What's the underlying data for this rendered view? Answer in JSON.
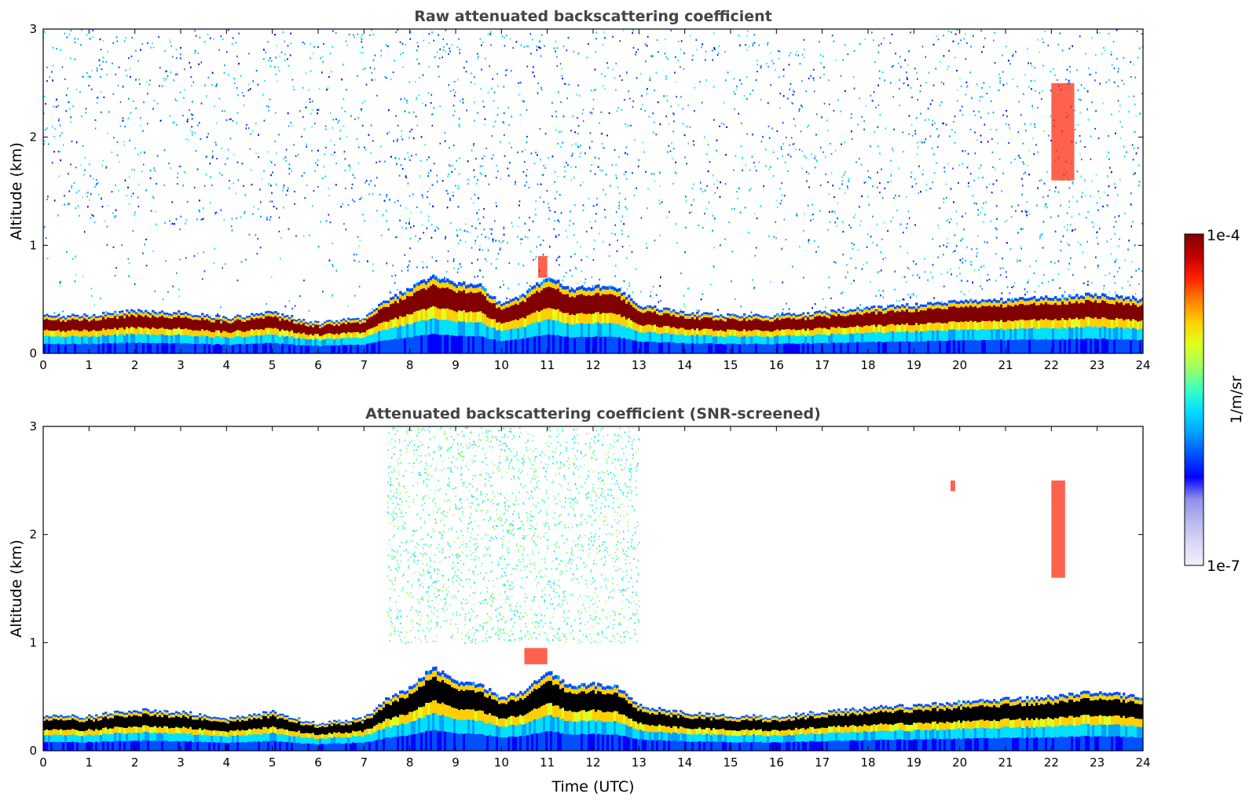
{
  "colors": {
    "background": "#ffffff",
    "axis": "#000000",
    "title": "#444444",
    "colormap": [
      "#f0f0fa",
      "#d8d8f5",
      "#b8b8f0",
      "#9090e8",
      "#0000ff",
      "#0050ff",
      "#00a0ff",
      "#00e0ff",
      "#40ffc0",
      "#a0ff60",
      "#e0ff20",
      "#ffd000",
      "#ff8000",
      "#ff2000",
      "#c00000",
      "#800000"
    ],
    "below_range": "#ffffff",
    "saturated": "#000000"
  },
  "chart_data": [
    {
      "type": "heatmap",
      "title": "Raw attenuated backscattering coefficient",
      "xlabel": "",
      "ylabel": "Altitude (km)",
      "xlim": [
        0,
        24
      ],
      "ylim": [
        0,
        3
      ],
      "xticks": [
        "0",
        "1",
        "2",
        "3",
        "4",
        "5",
        "6",
        "7",
        "8",
        "9",
        "10",
        "11",
        "12",
        "13",
        "14",
        "15",
        "16",
        "17",
        "18",
        "19",
        "20",
        "21",
        "22",
        "23",
        "24"
      ],
      "yticks": [
        "0",
        "1",
        "2",
        "3"
      ],
      "grid": false,
      "boundary_layer_top_km": [
        [
          0,
          0.35
        ],
        [
          1,
          0.35
        ],
        [
          2,
          0.4
        ],
        [
          3,
          0.38
        ],
        [
          4,
          0.33
        ],
        [
          5,
          0.38
        ],
        [
          6,
          0.28
        ],
        [
          7,
          0.33
        ],
        [
          7.5,
          0.5
        ],
        [
          8,
          0.6
        ],
        [
          8.5,
          0.72
        ],
        [
          9,
          0.65
        ],
        [
          9.5,
          0.65
        ],
        [
          10,
          0.45
        ],
        [
          10.5,
          0.55
        ],
        [
          11,
          0.72
        ],
        [
          11.5,
          0.6
        ],
        [
          12,
          0.62
        ],
        [
          12.5,
          0.62
        ],
        [
          13,
          0.45
        ],
        [
          14,
          0.38
        ],
        [
          15,
          0.35
        ],
        [
          16,
          0.35
        ],
        [
          17,
          0.38
        ],
        [
          18,
          0.42
        ],
        [
          19,
          0.45
        ],
        [
          20,
          0.48
        ],
        [
          21,
          0.5
        ],
        [
          22,
          0.52
        ],
        [
          23,
          0.55
        ],
        [
          24,
          0.5
        ]
      ],
      "features": [
        {
          "x": [
            10.8,
            11.0
          ],
          "y": [
            0.7,
            0.9
          ],
          "level": "high"
        },
        {
          "x": [
            22.0,
            22.5
          ],
          "y": [
            1.6,
            2.5
          ],
          "level": "high"
        }
      ]
    },
    {
      "type": "heatmap",
      "title": "Attenuated backscattering coefficient (SNR-screened)",
      "xlabel": "Time (UTC)",
      "ylabel": "Altitude (km)",
      "xlim": [
        0,
        24
      ],
      "ylim": [
        0,
        3
      ],
      "xticks": [
        "0",
        "1",
        "2",
        "3",
        "4",
        "5",
        "6",
        "7",
        "8",
        "9",
        "10",
        "11",
        "12",
        "13",
        "14",
        "15",
        "16",
        "17",
        "18",
        "19",
        "20",
        "21",
        "22",
        "23",
        "24"
      ],
      "yticks": [
        "0",
        "1",
        "2",
        "3"
      ],
      "grid": false,
      "boundary_layer_top_km": [
        [
          0,
          0.32
        ],
        [
          1,
          0.32
        ],
        [
          2,
          0.38
        ],
        [
          3,
          0.36
        ],
        [
          4,
          0.3
        ],
        [
          5,
          0.36
        ],
        [
          6,
          0.25
        ],
        [
          7,
          0.3
        ],
        [
          7.5,
          0.48
        ],
        [
          8,
          0.58
        ],
        [
          8.5,
          0.78
        ],
        [
          9,
          0.65
        ],
        [
          9.5,
          0.62
        ],
        [
          10,
          0.5
        ],
        [
          10.5,
          0.55
        ],
        [
          11,
          0.75
        ],
        [
          11.5,
          0.6
        ],
        [
          12,
          0.62
        ],
        [
          12.5,
          0.6
        ],
        [
          13,
          0.42
        ],
        [
          14,
          0.35
        ],
        [
          15,
          0.32
        ],
        [
          16,
          0.32
        ],
        [
          17,
          0.36
        ],
        [
          18,
          0.4
        ],
        [
          19,
          0.42
        ],
        [
          20,
          0.45
        ],
        [
          21,
          0.48
        ],
        [
          22,
          0.5
        ],
        [
          23,
          0.55
        ],
        [
          24,
          0.5
        ]
      ],
      "features": [
        {
          "x": [
            10.5,
            11.0
          ],
          "y": [
            0.8,
            0.95
          ],
          "level": "high"
        },
        {
          "x": [
            19.8,
            19.9
          ],
          "y": [
            2.4,
            2.5
          ],
          "level": "high"
        },
        {
          "x": [
            22.0,
            22.3
          ],
          "y": [
            1.6,
            2.5
          ],
          "level": "high"
        }
      ]
    }
  ],
  "colorbar": {
    "max_label": "1e-4",
    "min_label": "1e-7",
    "label": "1/m/sr"
  }
}
